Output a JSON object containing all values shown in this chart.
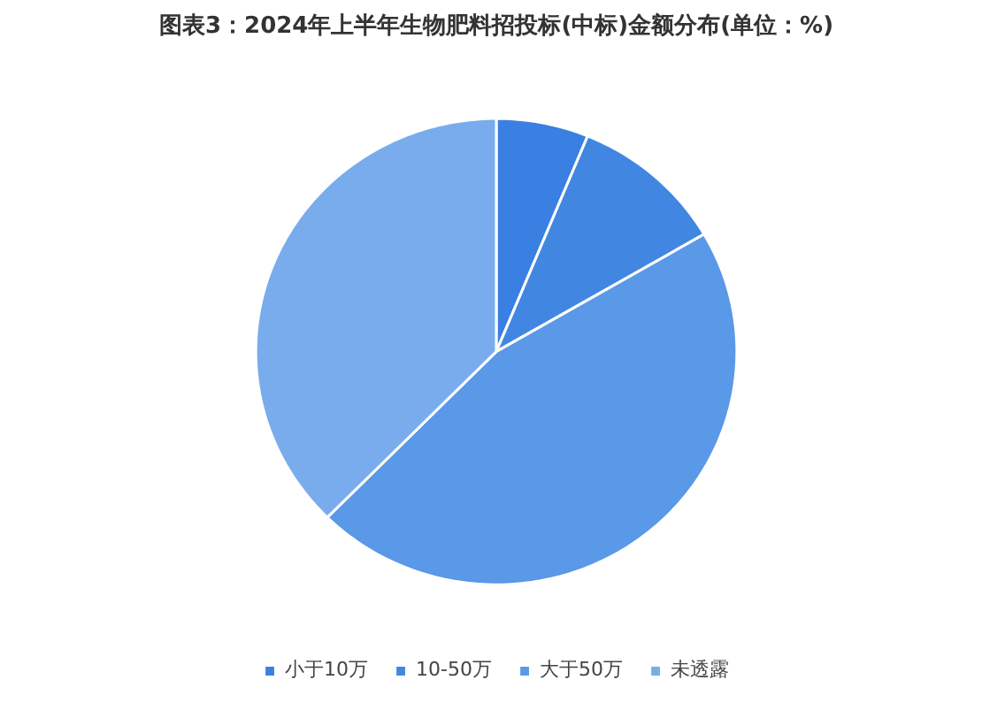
{
  "chart_data": {
    "type": "pie",
    "title": "图表3：2024年上半年生物肥料招投标(中标)金额分布(单位：%)",
    "categories": [
      "小于10万",
      "10-50万",
      "大于50万",
      "未透露"
    ],
    "values": [
      6.2,
      10.4,
      45.8,
      37.6
    ],
    "colors": [
      "#3a80e2",
      "#4187e2",
      "#5a98e8",
      "#79acec"
    ],
    "legend": "bottom"
  }
}
